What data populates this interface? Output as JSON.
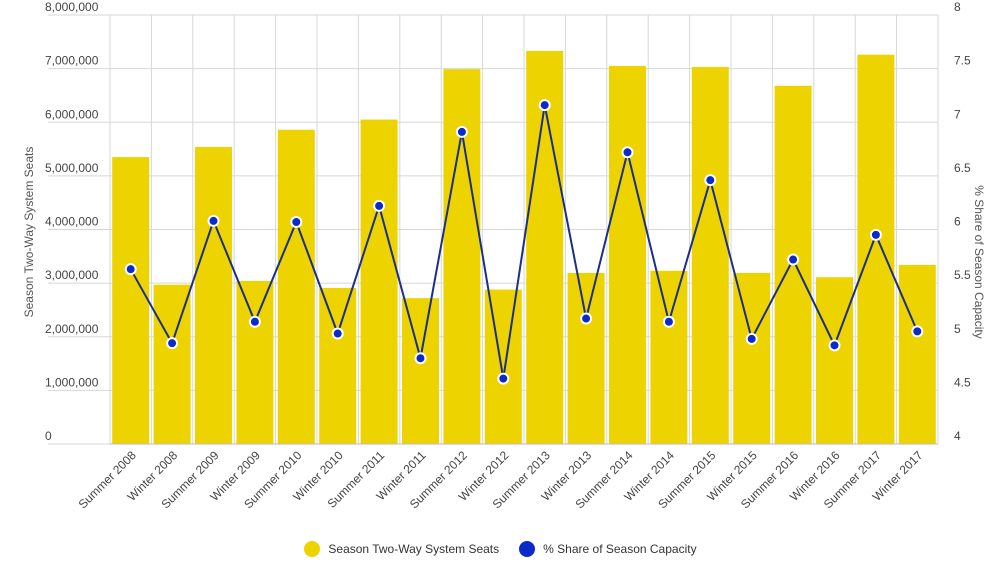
{
  "chart_data": {
    "type": "bar",
    "categories": [
      "Summer 2008",
      "Winter 2008",
      "Summer 2009",
      "Winter 2009",
      "Summer 2010",
      "Winter 2010",
      "Summer 2011",
      "Winter 2011",
      "Summer 2012",
      "Winter 2012",
      "Summer 2013",
      "Winter 2013",
      "Summer 2014",
      "Winter 2014",
      "Summer 2015",
      "Winter 2015",
      "Summer 2016",
      "Winter 2016",
      "Summer 2017",
      "Winter 2017"
    ],
    "series": [
      {
        "name": "Season Two-Way System Seats",
        "type": "bar",
        "axis": "left",
        "color": "#EDD400",
        "values": [
          5350000,
          2970000,
          5540000,
          3040000,
          5860000,
          2910000,
          6050000,
          2720000,
          6990000,
          2880000,
          7330000,
          3190000,
          7050000,
          3230000,
          7030000,
          3190000,
          6680000,
          3110000,
          7260000,
          3340000
        ]
      },
      {
        "name": "% Share of Season Capacity",
        "type": "line",
        "axis": "right",
        "color": "#1A2E8A",
        "marker_color": "#0A2AC9",
        "values": [
          5.63,
          4.94,
          6.08,
          5.14,
          6.07,
          5.03,
          6.22,
          4.8,
          6.91,
          4.61,
          7.16,
          5.17,
          6.72,
          5.14,
          6.46,
          4.98,
          5.72,
          4.92,
          5.95,
          5.05
        ]
      }
    ],
    "ylabel": "Season Two-Way System Seats",
    "ylabel_right": "% Share of Season Capacity",
    "ylim": [
      0,
      8000000
    ],
    "ylim_right": [
      4,
      8
    ],
    "yticks": [
      "0",
      "1,000,000",
      "2,000,000",
      "3,000,000",
      "4,000,000",
      "5,000,000",
      "6,000,000",
      "7,000,000",
      "8,000,000"
    ],
    "yticks_right": [
      "4",
      "4.5",
      "5",
      "5.5",
      "6",
      "6.5",
      "7",
      "7.5",
      "8"
    ],
    "grid": true,
    "legend_position": "bottom-center"
  },
  "legend": {
    "items": [
      {
        "label": "Season Two-Way System Seats",
        "color": "#EDD400"
      },
      {
        "label": "% Share of Season Capacity",
        "color": "#0A2AC9"
      }
    ]
  }
}
